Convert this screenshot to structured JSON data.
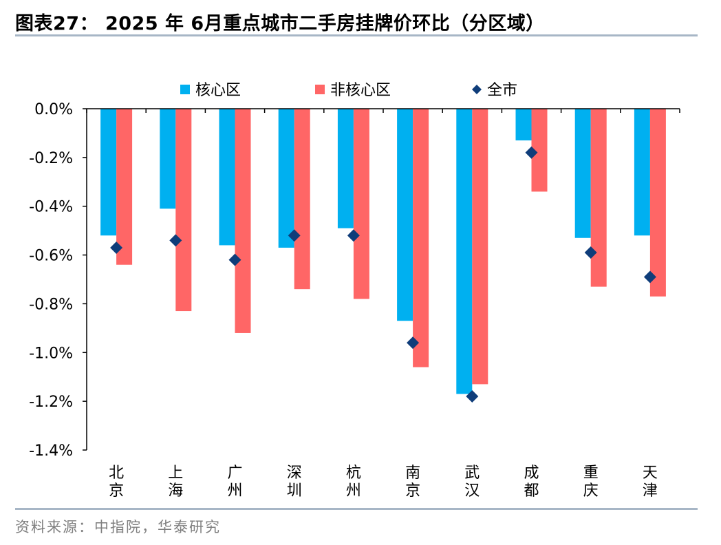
{
  "header": {
    "title": "图表27：  2025 年 6月重点城市二手房挂牌价环比（分区域）"
  },
  "footer": {
    "source": "资料来源：中指院，华泰研究"
  },
  "chart_data": {
    "type": "bar",
    "title": "",
    "categories": [
      "北京",
      "上海",
      "广州",
      "深圳",
      "杭州",
      "南京",
      "武汉",
      "成都",
      "重庆",
      "天津"
    ],
    "series": [
      {
        "name": "核心区",
        "kind": "bar",
        "color": "#00b0f0",
        "values": [
          -0.52,
          -0.41,
          -0.56,
          -0.57,
          -0.49,
          -0.87,
          -1.17,
          -0.13,
          -0.53,
          -0.52
        ]
      },
      {
        "name": "非核心区",
        "kind": "bar",
        "color": "#ff6666",
        "values": [
          -0.64,
          -0.83,
          -0.92,
          -0.74,
          -0.78,
          -1.06,
          -1.13,
          -0.34,
          -0.73,
          -0.77
        ]
      },
      {
        "name": "全市",
        "kind": "marker",
        "color": "#0f3d7a",
        "values": [
          -0.57,
          -0.54,
          -0.62,
          -0.52,
          -0.52,
          -0.96,
          -1.18,
          -0.18,
          -0.59,
          -0.69
        ]
      }
    ],
    "yticks": [
      "0.0%",
      "-0.2%",
      "-0.4%",
      "-0.6%",
      "-0.8%",
      "-1.0%",
      "-1.2%",
      "-1.4%"
    ],
    "ylim": [
      -1.4,
      0
    ],
    "xlabel": "",
    "ylabel": "",
    "legend_position": "top",
    "grid": false
  }
}
